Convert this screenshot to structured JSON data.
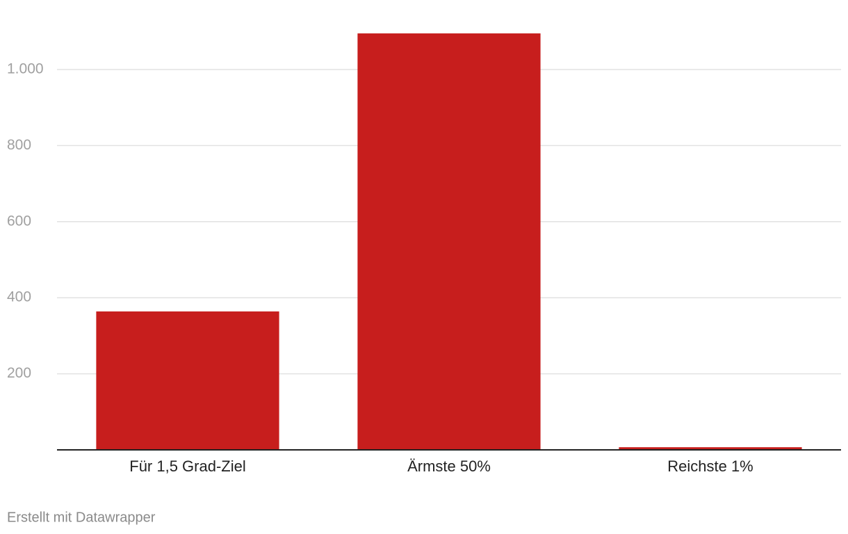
{
  "chart_data": {
    "type": "bar",
    "categories": [
      "Für 1,5 Grad-Ziel",
      "Ärmste 50%",
      "Reichste 1%"
    ],
    "values": [
      364,
      1095,
      7
    ],
    "color": "#c71e1d",
    "ylim": [
      0,
      1100
    ],
    "yticks": [
      200,
      400,
      600,
      800,
      {
        "value": 1000,
        "label": "1.000"
      }
    ],
    "grid": true,
    "credit": "Erstellt mit Datawrapper"
  }
}
